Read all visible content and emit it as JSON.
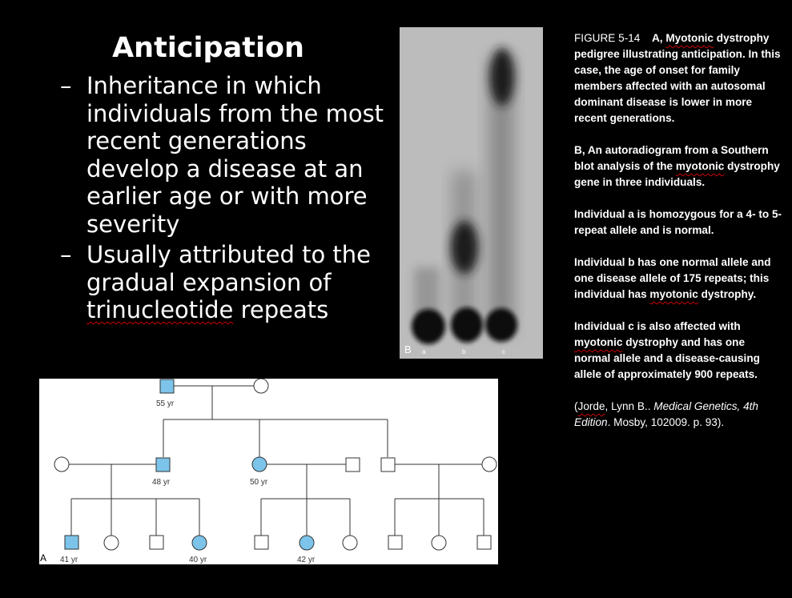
{
  "slide": {
    "title": "Anticipation",
    "bullets": [
      {
        "dash": "–",
        "text": "Inheritance in which individuals from the most recent generations develop a disease at an earlier age or with more severity"
      },
      {
        "dash": "–",
        "text_prefix": "Usually attributed to the gradual expansion of ",
        "text_underlined": "trinucleotide",
        "text_suffix": " repeats"
      }
    ]
  },
  "blot": {
    "panel_label": "B",
    "lane_labels": [
      "a",
      "b",
      "c"
    ]
  },
  "pedigree": {
    "panel_label": "A",
    "ages": {
      "grandfather": "55 yr",
      "son": "48 yr",
      "daughter": "50 yr",
      "grandson": "41 yr",
      "granddaughter1": "40 yr",
      "granddaughter2": "42 yr"
    },
    "colors": {
      "affected": "#7cc4ea",
      "line": "#333333"
    }
  },
  "caption": {
    "figure_number": "FIGURE 5-14",
    "part_a_prefix": "A, ",
    "part_a_word": "Myotonic",
    "part_a_rest": " dystrophy pedigree illustrating anticipation. In this case, the age of onset for family members affected with an autosomal dominant disease is lower in more recent generations.",
    "part_b_prefix": "B, An autoradiogram from a Southern blot analysis of the ",
    "part_b_word": "myotonic",
    "part_b_rest": " dystrophy gene in three individuals.",
    "ind_a": "Individual a is homozygous for a 4- to 5-repeat allele and is normal.",
    "ind_b_prefix": "Individual b has one normal allele and one disease allele of 175 repeats; this individual has ",
    "ind_b_word": "myotonic",
    "ind_b_suffix": " dystrophy.",
    "ind_c_prefix": "Individual c is also affected with ",
    "ind_c_word": "myotonic",
    "ind_c_suffix": " dystrophy and has one normal allele and a disease-causing allele of approximately 900 repeats.",
    "cite_open": "(",
    "cite_author": "Jorde",
    "cite_after_author": ", Lynn B.. ",
    "cite_book": "Medical Genetics, 4th Edition",
    "cite_rest": ". Mosby, 102009. p. 93)."
  }
}
